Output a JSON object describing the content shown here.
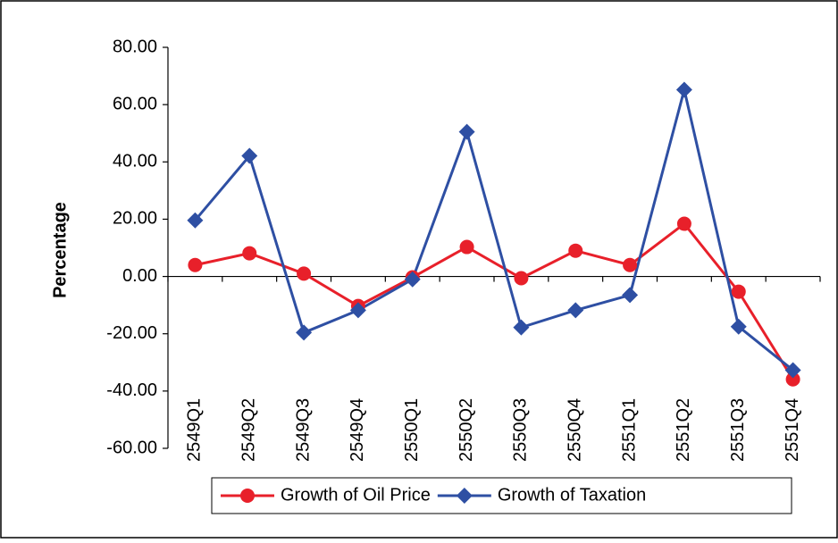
{
  "chart_data": {
    "type": "line",
    "y_label": "Percentage",
    "categories": [
      "2549Q1",
      "2549Q2",
      "2549Q3",
      "2549Q4",
      "2550Q1",
      "2550Q2",
      "2550Q3",
      "2550Q4",
      "2551Q1",
      "2551Q2",
      "2551Q3",
      "2551Q4"
    ],
    "series": [
      {
        "name": "Growth of Oil Price",
        "color": "#e8202a",
        "marker": "circle",
        "values": [
          4,
          8.1,
          1,
          -10.3,
          -0.3,
          10.3,
          -0.6,
          9,
          4,
          18.4,
          -5.3,
          -35.9
        ]
      },
      {
        "name": "Growth of Taxation",
        "color": "#2e4fa3",
        "marker": "diamond",
        "values": [
          19.6,
          42.1,
          -19.6,
          -11.8,
          -1,
          50.5,
          -17.8,
          -11.8,
          -6.5,
          65.2,
          -17.5,
          -32.7
        ]
      }
    ],
    "ylim": [
      -60,
      80
    ],
    "yticks": [
      {
        "value": -60,
        "label": "-60.00"
      },
      {
        "value": -40,
        "label": "-40.00"
      },
      {
        "value": -20,
        "label": "-20.00"
      },
      {
        "value": 0,
        "label": "0.00"
      },
      {
        "value": 20,
        "label": "20.00"
      },
      {
        "value": 40,
        "label": "40.00"
      },
      {
        "value": 60,
        "label": "60.00"
      },
      {
        "value": 80,
        "label": "80.00"
      }
    ],
    "legend": "bottom"
  }
}
